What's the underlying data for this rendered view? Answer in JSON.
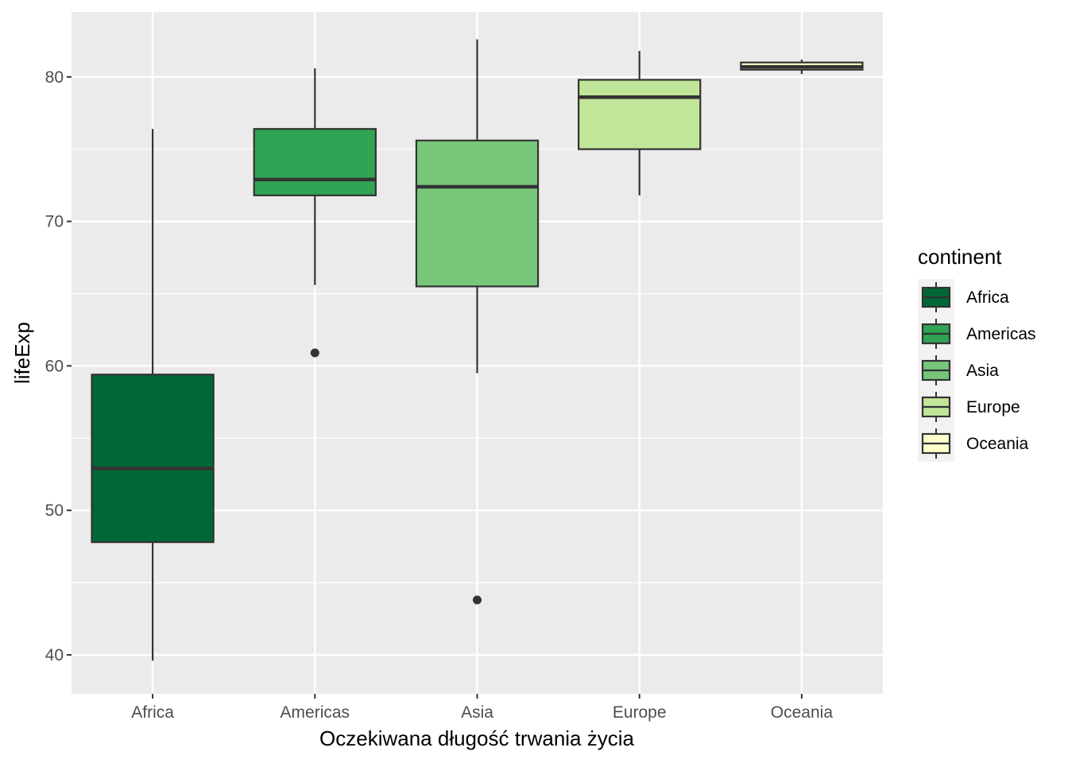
{
  "chart_data": {
    "type": "boxplot",
    "title": "",
    "xlabel": "Oczekiwana długość trwania życia",
    "ylabel": "lifeExp",
    "ylim": [
      37.3,
      84.5
    ],
    "yticks": [
      40,
      50,
      60,
      70,
      80
    ],
    "grid": true,
    "legend": {
      "title": "continent",
      "position": "right"
    },
    "categories": [
      "Africa",
      "Americas",
      "Asia",
      "Europe",
      "Oceania"
    ],
    "colors": [
      "#006837",
      "#31a354",
      "#78c679",
      "#c2e699",
      "#ffffcc"
    ],
    "boxes": [
      {
        "category": "Africa",
        "min": 39.6,
        "q1": 47.8,
        "median": 52.9,
        "q3": 59.4,
        "max": 76.4,
        "outliers": []
      },
      {
        "category": "Americas",
        "min": 65.6,
        "q1": 71.8,
        "median": 72.9,
        "q3": 76.4,
        "max": 80.6,
        "outliers": [
          60.9
        ]
      },
      {
        "category": "Asia",
        "min": 59.5,
        "q1": 65.5,
        "median": 72.4,
        "q3": 75.6,
        "max": 82.6,
        "outliers": [
          43.8
        ]
      },
      {
        "category": "Europe",
        "min": 71.8,
        "q1": 75.0,
        "median": 78.6,
        "q3": 79.8,
        "max": 81.8,
        "outliers": []
      },
      {
        "category": "Oceania",
        "min": 80.2,
        "q1": 80.5,
        "median": 80.7,
        "q3": 81.0,
        "max": 81.2,
        "outliers": []
      }
    ]
  }
}
